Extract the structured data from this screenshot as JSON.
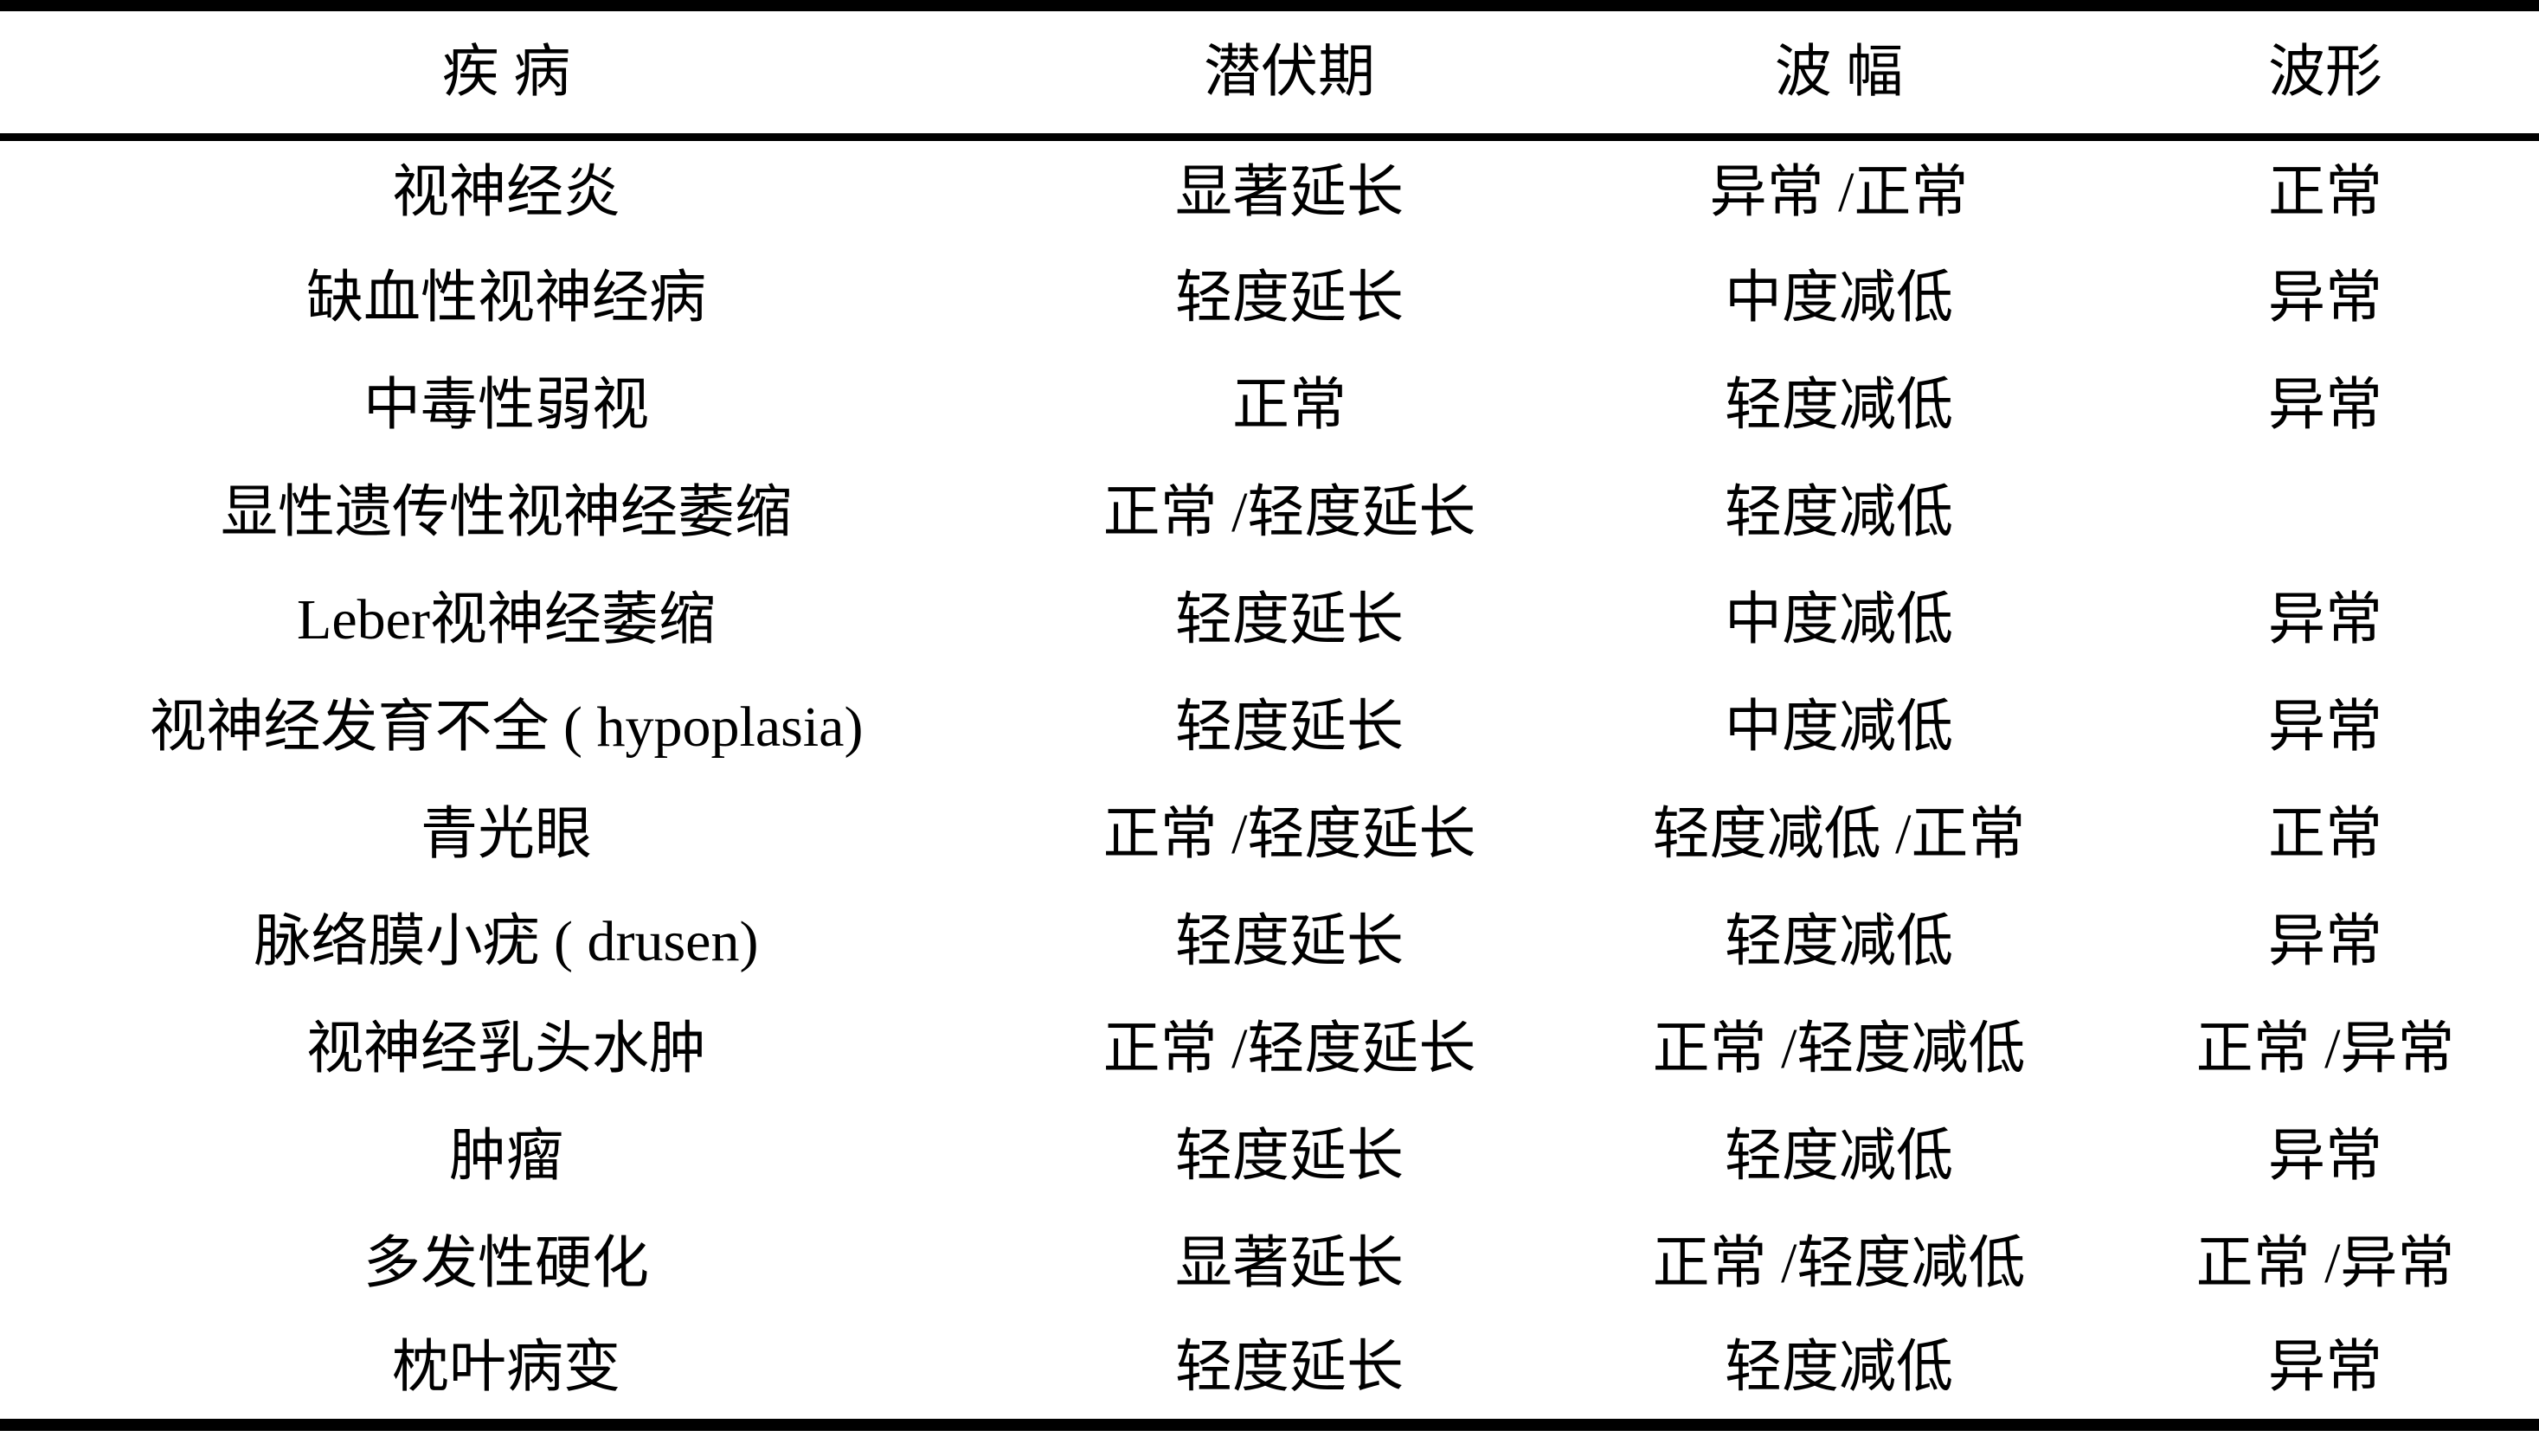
{
  "colors": {
    "background": "#ffffff",
    "text": "#000000",
    "rule": "#000000"
  },
  "table": {
    "columns": {
      "disease": "疾 病",
      "latency": "潜伏期",
      "amplitude": "波 幅",
      "waveform": "波形"
    },
    "rows": [
      [
        "视神经炎",
        "显著延长",
        "异常 /正常",
        "正常"
      ],
      [
        "缺血性视神经病",
        "轻度延长",
        "中度减低",
        "异常"
      ],
      [
        "中毒性弱视",
        "正常",
        "轻度减低",
        "异常"
      ],
      [
        "显性遗传性视神经萎缩",
        "正常 /轻度延长",
        "轻度减低",
        ""
      ],
      [
        "Leber视神经萎缩",
        "轻度延长",
        "中度减低",
        "异常"
      ],
      [
        "视神经发育不全 ( hypoplasia)",
        "轻度延长",
        "中度减低",
        "异常"
      ],
      [
        "青光眼",
        "正常 /轻度延长",
        "轻度减低 /正常",
        "正常"
      ],
      [
        "脉络膜小疣 ( drusen)",
        "轻度延长",
        "轻度减低",
        "异常"
      ],
      [
        "视神经乳头水肿",
        "正常 /轻度延长",
        "正常 /轻度减低",
        "正常 /异常"
      ],
      [
        "肿瘤",
        "轻度延长",
        "轻度减低",
        "异常"
      ],
      [
        "多发性硬化",
        "显著延长",
        "正常 /轻度减低",
        "正常 /异常"
      ],
      [
        "枕叶病变",
        "轻度延长",
        "轻度减低",
        "异常"
      ]
    ]
  }
}
